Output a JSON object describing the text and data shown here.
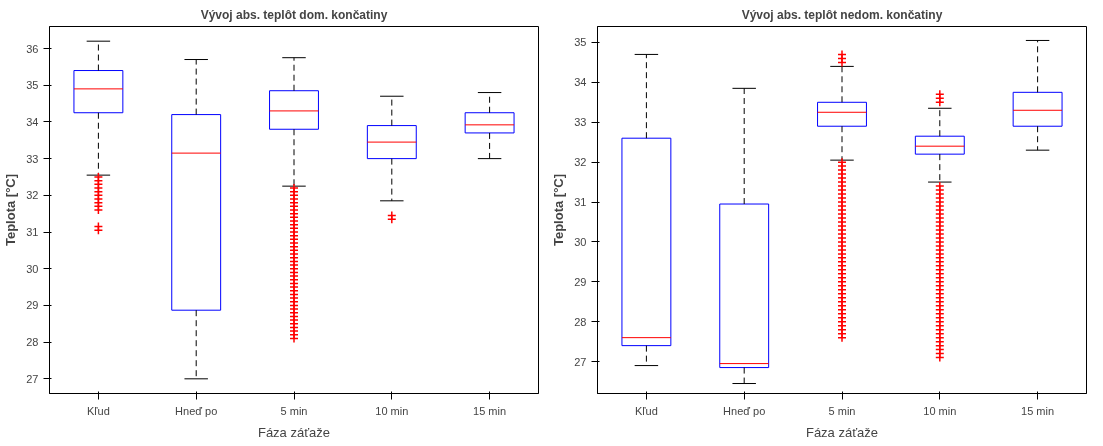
{
  "chart_data": [
    {
      "type": "box",
      "title": "Vývoj abs. teplôt dom. končatiny",
      "xlabel": "Fáza záťaže",
      "ylabel": "Teplota [°C]",
      "categories": [
        "Kľud",
        "Hneď po",
        "5 min",
        "10 min",
        "15 min"
      ],
      "ylim": [
        26.6,
        36.6
      ],
      "yticks": [
        27,
        28,
        29,
        30,
        31,
        32,
        33,
        34,
        35,
        36
      ],
      "boxes": [
        {
          "low": 32.55,
          "q1": 34.25,
          "median": 34.9,
          "q3": 35.4,
          "high": 36.2,
          "outliers": [
            32.5,
            32.4,
            32.3,
            32.2,
            32.1,
            32.0,
            31.9,
            31.8,
            31.7,
            31.6,
            31.15,
            31.05
          ]
        },
        {
          "low": 27.0,
          "q1": 28.87,
          "median": 33.15,
          "q3": 34.2,
          "high": 35.7
        },
        {
          "low": 32.25,
          "q1": 33.8,
          "median": 34.3,
          "q3": 34.85,
          "high": 35.75,
          "outliers": [
            32.2,
            32.1,
            32.0,
            31.9,
            31.8,
            31.7,
            31.6,
            31.5,
            31.4,
            31.3,
            31.2,
            31.1,
            31.0,
            30.9,
            30.8,
            30.7,
            30.6,
            30.5,
            30.4,
            30.3,
            30.2,
            30.1,
            30.0,
            29.9,
            29.8,
            29.7,
            29.6,
            29.5,
            29.4,
            29.3,
            29.2,
            29.1,
            29.0,
            28.9,
            28.8,
            28.7,
            28.6,
            28.5,
            28.4,
            28.3,
            28.2,
            28.1
          ]
        },
        {
          "low": 31.85,
          "q1": 33.0,
          "median": 33.45,
          "q3": 33.9,
          "high": 34.7,
          "outliers": [
            31.45,
            31.35
          ]
        },
        {
          "low": 33.0,
          "q1": 33.7,
          "median": 33.92,
          "q3": 34.25,
          "high": 34.8
        }
      ]
    },
    {
      "type": "box",
      "title": "Vývoj abs. teplôt nedom. končatiny",
      "xlabel": "Fáza záťaže",
      "ylabel": "Teplota [°C]",
      "categories": [
        "Kľud",
        "Hneď po",
        "5 min",
        "10 min",
        "15 min"
      ],
      "ylim": [
        26.2,
        35.4
      ],
      "yticks": [
        27,
        28,
        29,
        30,
        31,
        32,
        33,
        34,
        35
      ],
      "boxes": [
        {
          "low": 26.9,
          "q1": 27.4,
          "median": 27.6,
          "q3": 32.6,
          "high": 34.7
        },
        {
          "low": 26.45,
          "q1": 26.85,
          "median": 26.95,
          "q3": 30.95,
          "high": 33.85
        },
        {
          "low": 32.05,
          "q1": 32.9,
          "median": 33.25,
          "q3": 33.5,
          "high": 34.4,
          "outliers": [
            34.7,
            34.6,
            34.5,
            32.0,
            31.9,
            31.8,
            31.7,
            31.6,
            31.5,
            31.4,
            31.3,
            31.2,
            31.1,
            31.0,
            30.9,
            30.8,
            30.7,
            30.6,
            30.5,
            30.4,
            30.3,
            30.2,
            30.1,
            30.0,
            29.9,
            29.8,
            29.7,
            29.6,
            29.5,
            29.4,
            29.3,
            29.2,
            29.1,
            29.0,
            28.9,
            28.8,
            28.7,
            28.6,
            28.5,
            28.4,
            28.3,
            28.2,
            28.1,
            28.0,
            27.9,
            27.8,
            27.7,
            27.6
          ]
        },
        {
          "low": 31.5,
          "q1": 32.2,
          "median": 32.4,
          "q3": 32.65,
          "high": 33.35,
          "outliers": [
            33.7,
            33.6,
            33.5,
            31.4,
            31.3,
            31.2,
            31.1,
            31.0,
            30.9,
            30.8,
            30.7,
            30.6,
            30.5,
            30.4,
            30.3,
            30.2,
            30.1,
            30.0,
            29.9,
            29.8,
            29.7,
            29.6,
            29.5,
            29.4,
            29.3,
            29.2,
            29.1,
            29.0,
            28.9,
            28.8,
            28.7,
            28.6,
            28.5,
            28.4,
            28.3,
            28.2,
            28.1,
            28.0,
            27.9,
            27.8,
            27.7,
            27.6,
            27.5,
            27.4,
            27.3,
            27.2,
            27.1
          ]
        },
        {
          "low": 32.3,
          "q1": 32.9,
          "median": 33.3,
          "q3": 33.75,
          "high": 35.05
        }
      ]
    }
  ]
}
